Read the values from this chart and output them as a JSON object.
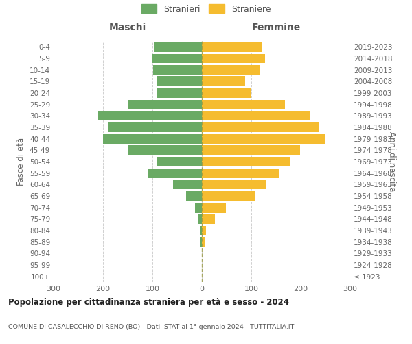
{
  "age_groups": [
    "100+",
    "95-99",
    "90-94",
    "85-89",
    "80-84",
    "75-79",
    "70-74",
    "65-69",
    "60-64",
    "55-59",
    "50-54",
    "45-49",
    "40-44",
    "35-39",
    "30-34",
    "25-29",
    "20-24",
    "15-19",
    "10-14",
    "5-9",
    "0-4"
  ],
  "birth_years": [
    "≤ 1923",
    "1924-1928",
    "1929-1933",
    "1934-1938",
    "1939-1943",
    "1944-1948",
    "1949-1953",
    "1954-1958",
    "1959-1963",
    "1964-1968",
    "1969-1973",
    "1974-1978",
    "1979-1983",
    "1984-1988",
    "1989-1993",
    "1994-1998",
    "1999-2003",
    "2004-2008",
    "2009-2013",
    "2014-2018",
    "2019-2023"
  ],
  "males": [
    0,
    0,
    0,
    4,
    4,
    8,
    14,
    32,
    58,
    108,
    90,
    148,
    200,
    190,
    210,
    148,
    92,
    90,
    98,
    102,
    97
  ],
  "females": [
    0,
    0,
    0,
    6,
    9,
    26,
    48,
    108,
    130,
    155,
    178,
    198,
    248,
    238,
    218,
    168,
    98,
    87,
    118,
    128,
    122
  ],
  "male_color": "#6aaa64",
  "female_color": "#f5bc2f",
  "grid_color": "#d0d0d0",
  "dashed_line_color": "#999944",
  "xlim": 300,
  "title": "Popolazione per cittadinanza straniera per età e sesso - 2024",
  "subtitle": "COMUNE DI CASALECCHIO DI RENO (BO) - Dati ISTAT al 1° gennaio 2024 - TUTTITALIA.IT",
  "left_label": "Maschi",
  "right_label": "Femmine",
  "left_axis_label": "Fasce di età",
  "right_axis_label": "Anni di nascita",
  "legend_males": "Stranieri",
  "legend_females": "Straniere",
  "bg_color": "#ffffff"
}
